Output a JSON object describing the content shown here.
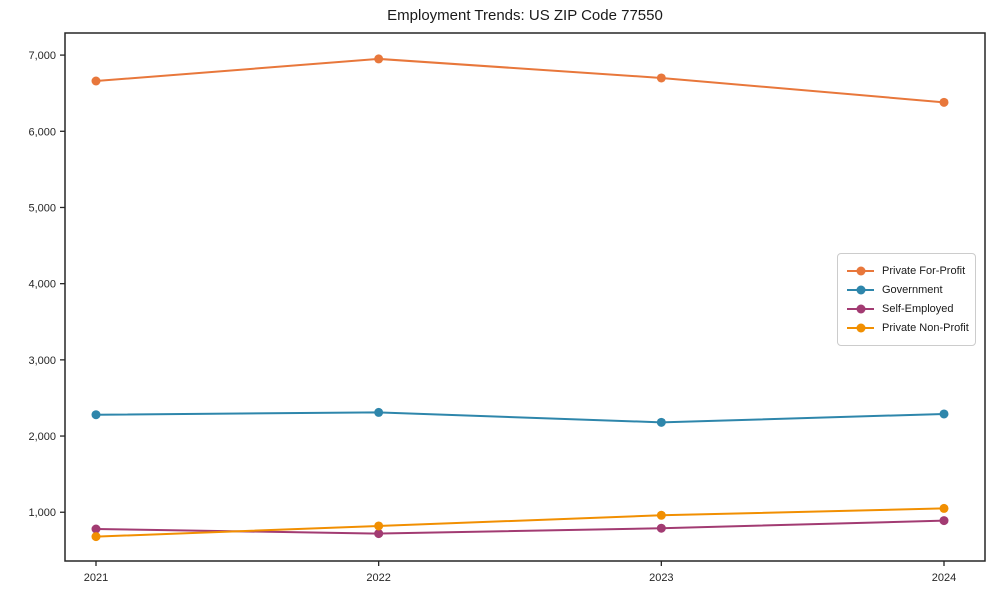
{
  "title": "Employment Trends: US ZIP Code 77550",
  "chart_data": {
    "type": "line",
    "title": "Employment Trends: US ZIP Code 77550",
    "xlabel": "",
    "ylabel": "",
    "x_labels": [
      "2021",
      "2022",
      "2023",
      "2024"
    ],
    "series": [
      {
        "name": "Private For-Profit",
        "color": "#E8773B",
        "values": [
          6660,
          6950,
          6700,
          6380
        ]
      },
      {
        "name": "Government",
        "color": "#2E86AB",
        "values": [
          2280,
          2310,
          2180,
          2290
        ]
      },
      {
        "name": "Self-Employed",
        "color": "#A23B72",
        "values": [
          780,
          720,
          790,
          890
        ]
      },
      {
        "name": "Private Non-Profit",
        "color": "#F18F01",
        "values": [
          680,
          820,
          960,
          1050
        ]
      }
    ],
    "ylim": [
      360,
      7290
    ],
    "yticks": [
      1000,
      2000,
      3000,
      4000,
      5000,
      6000,
      7000
    ],
    "ytick_labels": [
      "1,000",
      "2,000",
      "3,000",
      "4,000",
      "5,000",
      "6,000",
      "7,000"
    ],
    "grid": false,
    "legend_position": "center right",
    "marker": "circle",
    "axis_color": "#262626"
  }
}
